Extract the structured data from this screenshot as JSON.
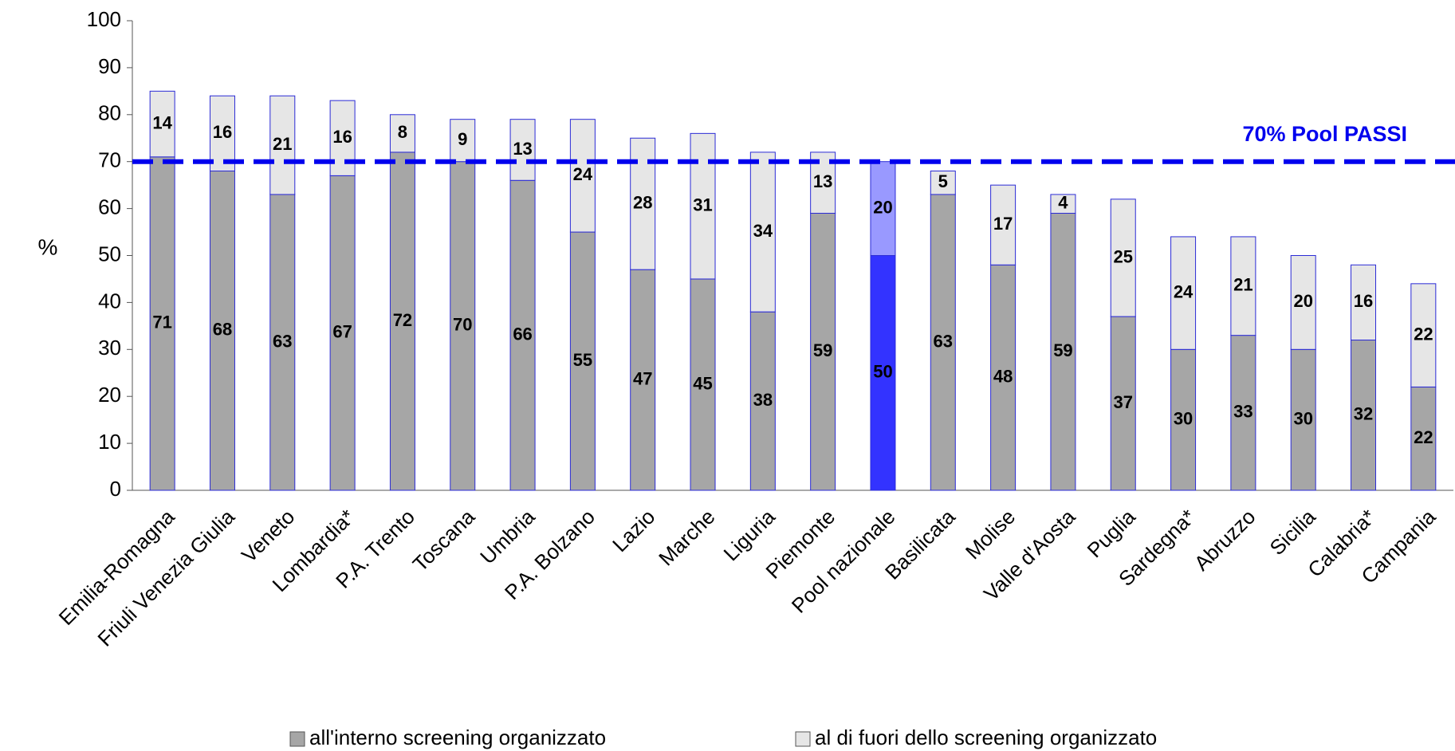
{
  "chart_data": {
    "type": "stacked_bar",
    "y_label": "%",
    "categories": [
      "Emilia-Romagna",
      "Friuli Venezia Giulia",
      "Veneto",
      "Lombardia*",
      "P.A. Trento",
      "Toscana",
      "Umbria",
      "P.A. Bolzano",
      "Lazio",
      "Marche",
      "Liguria",
      "Piemonte",
      "Pool nazionale",
      "Basilicata",
      "Molise",
      "Valle d'Aosta",
      "Puglia",
      "Sardegna*",
      "Abruzzo",
      "Sicilia",
      "Calabria*",
      "Campania"
    ],
    "series": [
      {
        "name": "all'interno screening organizzato",
        "color": "#a6a6a6",
        "highlight_color": "#3333ff",
        "values": [
          71,
          68,
          63,
          67,
          72,
          70,
          66,
          55,
          47,
          45,
          38,
          59,
          50,
          63,
          48,
          59,
          37,
          30,
          33,
          30,
          32,
          22
        ]
      },
      {
        "name": "al di fuori dello screening organizzato",
        "color": "#e6e6e6",
        "highlight_color": "#9999ff",
        "values": [
          14,
          16,
          21,
          16,
          8,
          9,
          13,
          24,
          28,
          31,
          34,
          13,
          20,
          5,
          17,
          4,
          25,
          24,
          21,
          20,
          16,
          22
        ]
      }
    ],
    "highlight_category": "Pool nazionale",
    "reference_line": {
      "value": 70,
      "label": "70% Pool PASSI",
      "color": "#0000ee"
    },
    "ylim": [
      0,
      100
    ],
    "yticks": [
      0,
      10,
      20,
      30,
      40,
      50,
      60,
      70,
      80,
      90,
      100
    ],
    "grid": false,
    "legend": "bottom"
  }
}
